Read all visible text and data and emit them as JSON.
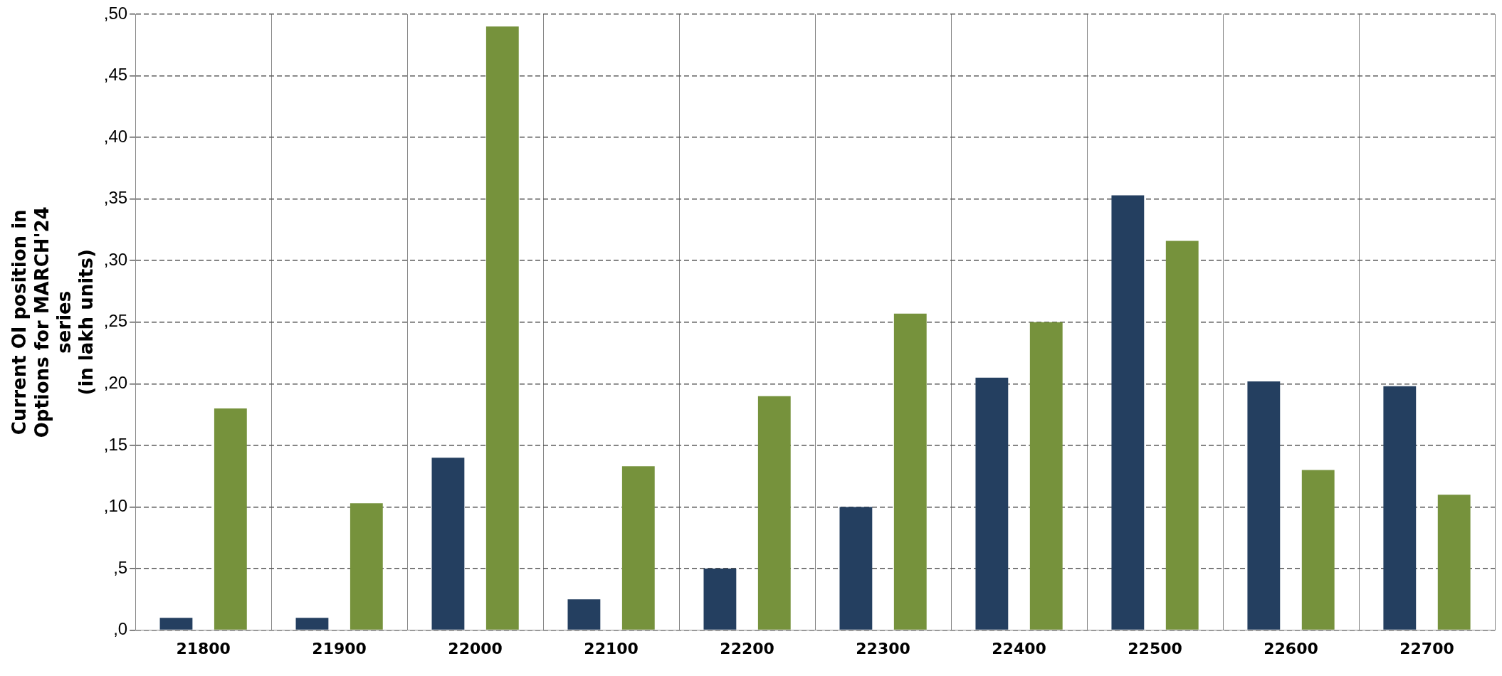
{
  "chart_data": {
    "type": "bar",
    "ylabel": "Current OI position in\nOptions for MARCH'24\nseries\n(in lakh units)",
    "categories": [
      "21800",
      "21900",
      "22000",
      "22100",
      "22200",
      "22300",
      "22400",
      "22500",
      "22600",
      "22700"
    ],
    "series": [
      {
        "color": "#243f60",
        "values": [
          1,
          1,
          14,
          2.5,
          5,
          10,
          20.5,
          35.3,
          20.2,
          19.8
        ]
      },
      {
        "color": "#76923c",
        "values": [
          18,
          10.3,
          49,
          13.3,
          19,
          25.7,
          25,
          31.6,
          13,
          11
        ]
      }
    ],
    "ylim": [
      0,
      50
    ],
    "yticks": [
      {
        "value": 0,
        "label": ",0"
      },
      {
        "value": 5,
        "label": ",5"
      },
      {
        "value": 10,
        "label": ",10"
      },
      {
        "value": 15,
        "label": ",15"
      },
      {
        "value": 20,
        "label": ",20"
      },
      {
        "value": 25,
        "label": ",25"
      },
      {
        "value": 30,
        "label": ",30"
      },
      {
        "value": 35,
        "label": ",35"
      },
      {
        "value": 40,
        "label": ",40"
      },
      {
        "value": 45,
        "label": ",45"
      },
      {
        "value": 50,
        "label": ",50"
      }
    ],
    "grid": true,
    "legend": false
  }
}
